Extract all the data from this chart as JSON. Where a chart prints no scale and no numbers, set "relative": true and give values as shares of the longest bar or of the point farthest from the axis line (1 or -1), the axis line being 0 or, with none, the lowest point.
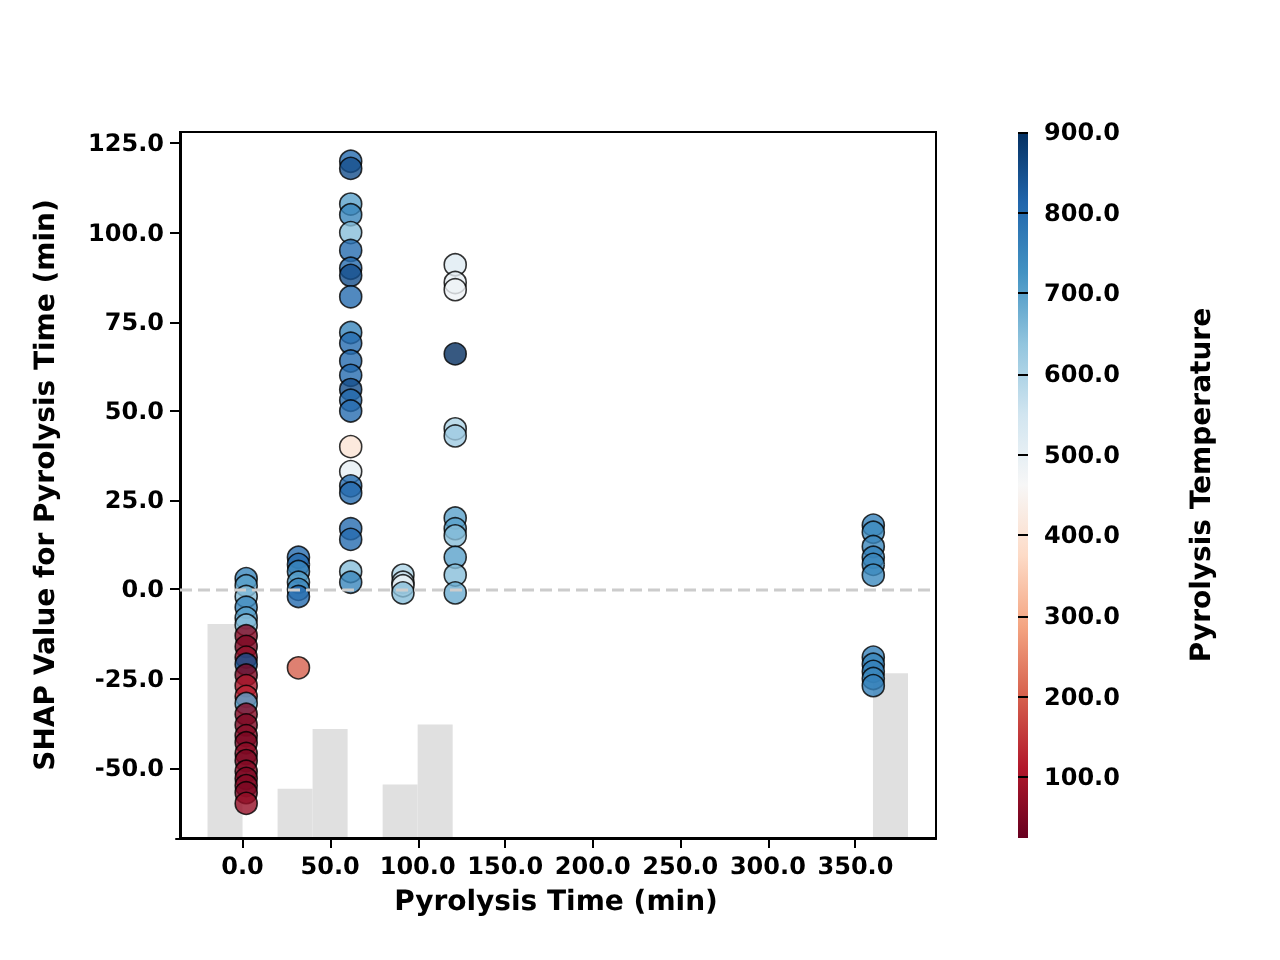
{
  "chart_data": [
    {
      "type": "scatter",
      "ylabel": "SHAP Value for Pyrolysis Time (min)",
      "clabel": "Pyrolysis Temperature",
      "tick_labels": "y",
      "xlim": [
        -38,
        396
      ],
      "ylim": [
        -69.7,
        128.2
      ],
      "yticks": [
        {
          "value": -50,
          "label": "-50.0"
        },
        {
          "value": -25,
          "label": "-25.0"
        },
        {
          "value": 0,
          "label": "0.0"
        },
        {
          "value": 25,
          "label": "25.0"
        },
        {
          "value": 50,
          "label": "50.0"
        },
        {
          "value": 75,
          "label": "75.0"
        },
        {
          "value": 100,
          "label": "100.0"
        },
        {
          "value": 125,
          "label": "125.0"
        }
      ],
      "clim": [
        25,
        900
      ],
      "cticks": [
        {
          "value": 100,
          "label": "100.0"
        },
        {
          "value": 200,
          "label": "200.0"
        },
        {
          "value": 300,
          "label": "300.0"
        },
        {
          "value": 400,
          "label": "400.0"
        },
        {
          "value": 500,
          "label": "500.0"
        },
        {
          "value": 600,
          "label": "600.0"
        },
        {
          "value": 700,
          "label": "700.0"
        },
        {
          "value": 800,
          "label": "800.0"
        },
        {
          "value": 900,
          "label": "900.0"
        }
      ],
      "marker": "circle",
      "ref_lines": [
        {
          "axis": "y",
          "value": 0,
          "color": "#cccccc",
          "line_style": "dashed"
        }
      ],
      "series": [
        {
          "x": [
            0,
            0,
            0,
            0,
            0,
            0,
            0,
            0,
            0,
            0,
            0,
            0,
            0,
            0,
            0,
            0,
            0,
            0,
            0,
            0,
            0,
            0,
            0,
            0,
            0,
            30,
            30,
            30,
            30,
            30,
            30,
            30,
            60,
            60,
            60,
            60,
            60,
            60,
            60,
            60,
            60,
            60,
            60,
            60,
            60,
            60,
            60,
            60,
            60,
            60,
            60,
            60,
            60,
            60,
            60,
            60,
            90,
            90,
            90,
            90,
            120,
            120,
            120,
            120,
            120,
            120,
            120,
            120,
            120,
            120,
            120,
            120,
            360,
            360,
            360,
            360,
            360,
            360,
            360,
            360,
            360,
            360,
            360
          ],
          "values": [
            3,
            1,
            -2,
            -5,
            -8,
            -10,
            -13,
            -16,
            -19,
            -21,
            -24,
            -27,
            -30,
            -32,
            -35,
            -38,
            -41,
            -43,
            -46,
            -48,
            -51,
            -53,
            -55,
            -57,
            -60,
            9,
            7,
            5,
            2,
            0,
            -2,
            -22,
            120,
            118,
            108,
            105,
            100,
            95,
            90,
            88,
            82,
            72,
            69,
            64,
            60,
            56,
            53,
            50,
            40,
            33,
            29,
            27,
            17,
            14,
            5,
            2,
            4,
            2,
            1,
            -1,
            91,
            86,
            84,
            66,
            45,
            43,
            20,
            17,
            15,
            9,
            4,
            -1,
            18,
            16,
            12,
            9,
            7,
            4,
            -19,
            -21,
            -23,
            -25,
            -27
          ],
          "cvalues": [
            750,
            700,
            650,
            750,
            700,
            650,
            60,
            50,
            70,
            850,
            50,
            100,
            120,
            700,
            60,
            50,
            60,
            50,
            70,
            50,
            60,
            50,
            60,
            50,
            80,
            800,
            800,
            750,
            700,
            750,
            800,
            200,
            800,
            850,
            700,
            750,
            650,
            800,
            800,
            850,
            800,
            750,
            800,
            800,
            800,
            850,
            800,
            800,
            400,
            500,
            800,
            800,
            800,
            800,
            650,
            750,
            600,
            550,
            500,
            650,
            520,
            500,
            480,
            900,
            600,
            620,
            700,
            700,
            650,
            700,
            650,
            680,
            760,
            740,
            750,
            760,
            750,
            740,
            760,
            750,
            760,
            750,
            760
          ]
        }
      ]
    },
    {
      "type": "bar",
      "relative": true,
      "tick_labels": "x",
      "xlabel": "Pyrolysis Time (min)",
      "xlim": [
        -38,
        396
      ],
      "color": "#e0e0e0",
      "xticks": [
        {
          "value": 0,
          "label": "0.0"
        },
        {
          "value": 50,
          "label": "50.0"
        },
        {
          "value": 100,
          "label": "100.0"
        },
        {
          "value": 150,
          "label": "150.0"
        },
        {
          "value": 200,
          "label": "200.0"
        },
        {
          "value": 250,
          "label": "250.0"
        },
        {
          "value": 300,
          "label": "300.0"
        },
        {
          "value": 350,
          "label": "350.0"
        }
      ],
      "x": [
        -10,
        10,
        30,
        50,
        70,
        90,
        110,
        130,
        150,
        170,
        190,
        210,
        230,
        250,
        270,
        290,
        310,
        330,
        350,
        370
      ],
      "values": [
        1,
        0,
        0.23,
        0.51,
        0,
        0.25,
        0.53,
        0,
        0,
        0,
        0,
        0,
        0,
        0,
        0,
        0,
        0,
        0,
        0,
        0.77
      ]
    }
  ]
}
